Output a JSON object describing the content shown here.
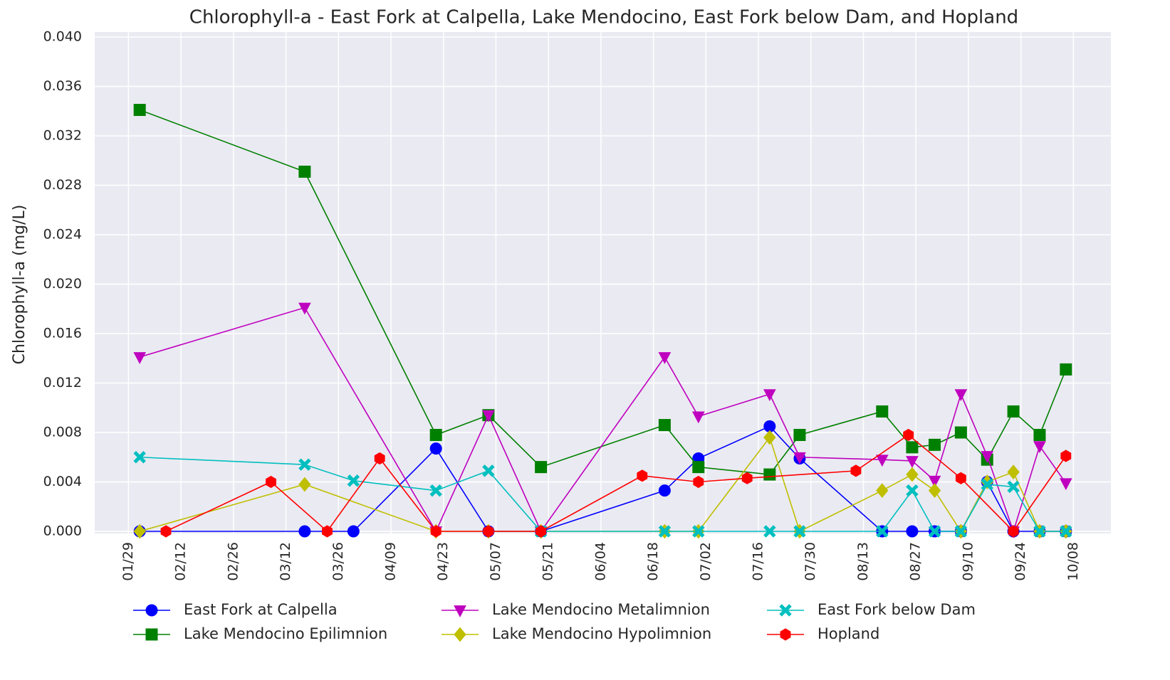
{
  "chart_data": {
    "type": "line",
    "title": "Chlorophyll-a - East Fork at Calpella, Lake Mendocino, East Fork below Dam, and Hopland",
    "y_label": "Chlorophyll-a (mg/L)",
    "xlim": [
      "01/20",
      "10/18"
    ],
    "xticks": [
      "01/29",
      "02/12",
      "02/26",
      "03/12",
      "03/26",
      "04/09",
      "04/23",
      "05/07",
      "05/21",
      "06/04",
      "06/18",
      "07/02",
      "07/16",
      "07/30",
      "08/13",
      "08/27",
      "09/10",
      "09/24",
      "10/08"
    ],
    "ylim": [
      0,
      0.04
    ],
    "yticks": [
      {
        "value": 0,
        "label": "0.000"
      },
      {
        "value": 0.004,
        "label": "0.004"
      },
      {
        "value": 0.008,
        "label": "0.008"
      },
      {
        "value": 0.012,
        "label": "0.012"
      },
      {
        "value": 0.016,
        "label": "0.016"
      },
      {
        "value": 0.02,
        "label": "0.020"
      },
      {
        "value": 0.024,
        "label": "0.024"
      },
      {
        "value": 0.028,
        "label": "0.028"
      },
      {
        "value": 0.032,
        "label": "0.032"
      },
      {
        "value": 0.036,
        "label": "0.036"
      },
      {
        "value": 0.04,
        "label": "0.040"
      }
    ],
    "grid": true,
    "legend_position": "bottom",
    "series": [
      {
        "name": "East Fork at Calpella",
        "color": "#0000ff",
        "marker": "o",
        "x": [
          "02/01",
          "03/17",
          "03/30",
          "04/21",
          "05/05",
          "05/19",
          "06/21",
          "06/30",
          "07/19",
          "07/27",
          "08/18",
          "08/26",
          "09/01",
          "09/08",
          "09/15",
          "09/22",
          "09/29",
          "10/06"
        ],
        "values": [
          0,
          0,
          0,
          0.0067,
          0,
          0,
          0.0033,
          0.0059,
          0.0085,
          0.0059,
          0,
          0,
          0,
          0,
          0.004,
          0,
          0,
          0
        ]
      },
      {
        "name": "Lake Mendocino Epilimnion",
        "color": "#008000",
        "marker": "s",
        "x": [
          "02/01",
          "03/17",
          "04/21",
          "05/05",
          "05/19",
          "06/21",
          "06/30",
          "07/19",
          "07/27",
          "08/18",
          "08/26",
          "09/01",
          "09/08",
          "09/15",
          "09/22",
          "09/29",
          "10/06"
        ],
        "values": [
          0.0341,
          0.0291,
          0.0078,
          0.0094,
          0.0052,
          0.0086,
          0.0052,
          0.0046,
          0.0078,
          0.0097,
          0.0068,
          0.007,
          0.008,
          0.0058,
          0.0097,
          0.0078,
          0.0131
        ]
      },
      {
        "name": "Lake Mendocino Metalimnion",
        "color": "#bf00bf",
        "marker": "v",
        "x": [
          "02/01",
          "03/17",
          "04/21",
          "05/05",
          "05/19",
          "06/21",
          "06/30",
          "07/19",
          "07/27",
          "08/18",
          "08/26",
          "09/01",
          "09/08",
          "09/15",
          "09/22",
          "09/29",
          "10/06"
        ],
        "values": [
          0.0141,
          0.0181,
          0,
          0.0094,
          0,
          0.0141,
          0.0093,
          0.0111,
          0.006,
          0.0058,
          0.0057,
          0.0041,
          0.0111,
          0.0061,
          0,
          0.0069,
          0.0039
        ]
      },
      {
        "name": "Lake Mendocino Hypolimnion",
        "color": "#bfbf00",
        "marker": "D",
        "x": [
          "02/01",
          "03/17",
          "04/21",
          "05/05",
          "05/19",
          "06/21",
          "06/30",
          "07/19",
          "07/27",
          "08/18",
          "08/26",
          "09/01",
          "09/08",
          "09/15",
          "09/22",
          "09/29",
          "10/06"
        ],
        "values": [
          0,
          0.0038,
          0,
          0,
          0,
          0,
          0,
          0.0076,
          0,
          0.0033,
          0.0046,
          0.0033,
          0,
          0.004,
          0.0048,
          0,
          0
        ]
      },
      {
        "name": "East Fork below Dam",
        "color": "#00bfbf",
        "marker": "X",
        "x": [
          "02/01",
          "03/17",
          "03/30",
          "04/21",
          "05/05",
          "05/19",
          "06/21",
          "06/30",
          "07/19",
          "07/27",
          "08/18",
          "08/26",
          "09/01",
          "09/08",
          "09/15",
          "09/22",
          "09/29",
          "10/06"
        ],
        "values": [
          0.006,
          0.0054,
          0.0041,
          0.0033,
          0.0049,
          0,
          0,
          0,
          0,
          0,
          0,
          0.0033,
          0,
          0,
          0.0038,
          0.0036,
          0,
          0
        ]
      },
      {
        "name": "Hopland",
        "color": "#ff0000",
        "marker": "h",
        "x": [
          "02/08",
          "03/08",
          "03/23",
          "04/06",
          "04/21",
          "05/05",
          "05/19",
          "06/15",
          "06/30",
          "07/13",
          "08/11",
          "08/25",
          "09/08",
          "09/22",
          "10/06"
        ],
        "values": [
          0,
          0.004,
          0,
          0.0059,
          0,
          0,
          0,
          0.0045,
          0.004,
          0.0043,
          0.0049,
          0.0078,
          0.0043,
          0,
          0.0061
        ]
      }
    ]
  }
}
